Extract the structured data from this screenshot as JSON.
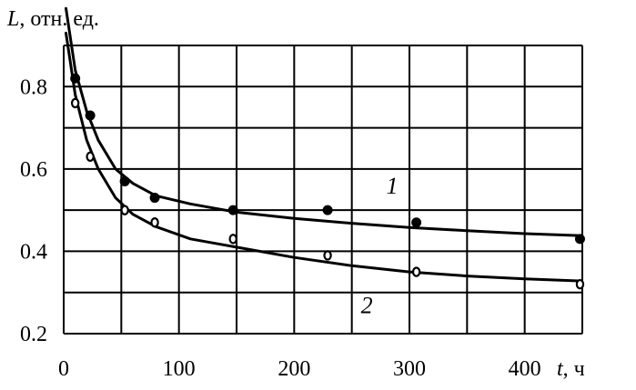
{
  "chart_data": {
    "type": "scatter",
    "title": "",
    "ylabel": {
      "var": "L",
      "unit": ", отн. ед."
    },
    "xlabel": {
      "var": "t",
      "unit": ", ч"
    },
    "xlim": [
      0,
      450
    ],
    "ylim": [
      0.2,
      0.9
    ],
    "xticks": [
      0,
      100,
      200,
      300,
      400
    ],
    "yticks": [
      0.2,
      0.4,
      0.6,
      0.8
    ],
    "grid": true,
    "series": [
      {
        "name": "1",
        "marker": "filled-circle",
        "points": [
          {
            "x": 10,
            "y": 0.82
          },
          {
            "x": 23,
            "y": 0.73
          },
          {
            "x": 53,
            "y": 0.57
          },
          {
            "x": 79,
            "y": 0.53
          },
          {
            "x": 147,
            "y": 0.5
          },
          {
            "x": 229,
            "y": 0.5
          },
          {
            "x": 306,
            "y": 0.47
          },
          {
            "x": 448,
            "y": 0.43
          }
        ],
        "fit": [
          {
            "x": 2,
            "y": 0.99
          },
          {
            "x": 10,
            "y": 0.84
          },
          {
            "x": 20,
            "y": 0.74
          },
          {
            "x": 30,
            "y": 0.67
          },
          {
            "x": 45,
            "y": 0.6
          },
          {
            "x": 60,
            "y": 0.565
          },
          {
            "x": 80,
            "y": 0.535
          },
          {
            "x": 110,
            "y": 0.515
          },
          {
            "x": 150,
            "y": 0.495
          },
          {
            "x": 200,
            "y": 0.48
          },
          {
            "x": 250,
            "y": 0.468
          },
          {
            "x": 300,
            "y": 0.458
          },
          {
            "x": 350,
            "y": 0.45
          },
          {
            "x": 400,
            "y": 0.443
          },
          {
            "x": 448,
            "y": 0.438
          }
        ]
      },
      {
        "name": "2",
        "marker": "open-circle",
        "points": [
          {
            "x": 10,
            "y": 0.76
          },
          {
            "x": 23,
            "y": 0.63
          },
          {
            "x": 53,
            "y": 0.5
          },
          {
            "x": 79,
            "y": 0.47
          },
          {
            "x": 147,
            "y": 0.43
          },
          {
            "x": 229,
            "y": 0.39
          },
          {
            "x": 306,
            "y": 0.35
          },
          {
            "x": 448,
            "y": 0.32
          }
        ],
        "fit": [
          {
            "x": 2,
            "y": 0.93
          },
          {
            "x": 10,
            "y": 0.78
          },
          {
            "x": 20,
            "y": 0.67
          },
          {
            "x": 30,
            "y": 0.6
          },
          {
            "x": 45,
            "y": 0.53
          },
          {
            "x": 60,
            "y": 0.49
          },
          {
            "x": 80,
            "y": 0.46
          },
          {
            "x": 110,
            "y": 0.43
          },
          {
            "x": 150,
            "y": 0.41
          },
          {
            "x": 200,
            "y": 0.385
          },
          {
            "x": 250,
            "y": 0.365
          },
          {
            "x": 300,
            "y": 0.35
          },
          {
            "x": 350,
            "y": 0.34
          },
          {
            "x": 400,
            "y": 0.333
          },
          {
            "x": 448,
            "y": 0.328
          }
        ]
      }
    ],
    "curve_labels": [
      {
        "text": "1",
        "series": "1",
        "x": 285,
        "y": 0.54
      },
      {
        "text": "2",
        "series": "2",
        "x": 263,
        "y": 0.25
      }
    ]
  }
}
